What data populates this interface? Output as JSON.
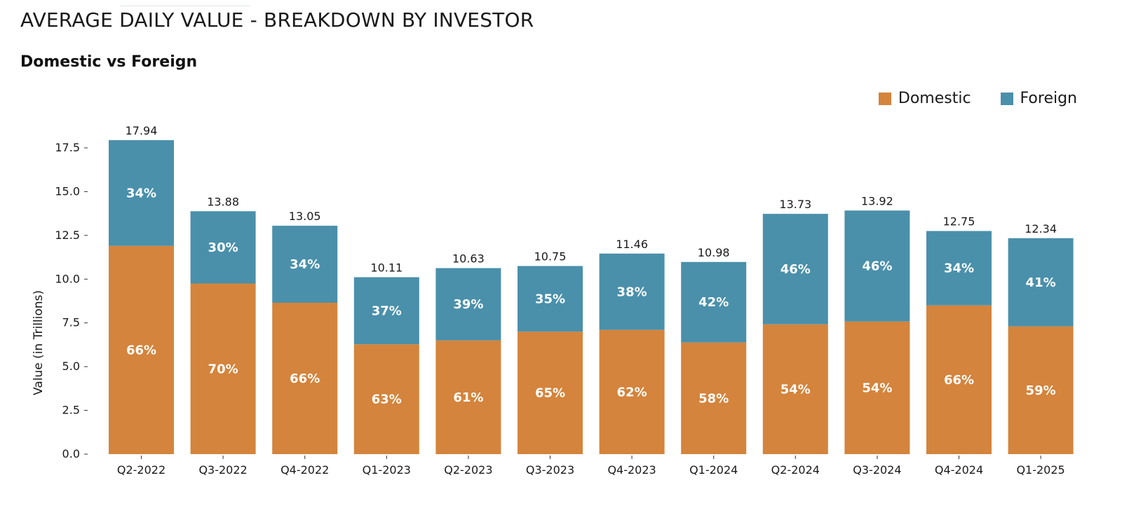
{
  "header": {
    "title": "AVERAGE DAILY VALUE - BREAKDOWN BY INVESTOR",
    "subtitle": "Domestic vs Foreign"
  },
  "legend": {
    "domestic_label": "Domestic",
    "foreign_label": "Foreign"
  },
  "colors": {
    "domestic": "#D4843C",
    "foreign": "#4A90AB"
  },
  "chart_data": {
    "type": "bar",
    "stacked": true,
    "categories": [
      "Q2-2022",
      "Q3-2022",
      "Q4-2022",
      "Q1-2023",
      "Q2-2023",
      "Q3-2023",
      "Q4-2023",
      "Q1-2024",
      "Q2-2024",
      "Q3-2024",
      "Q4-2024",
      "Q1-2025"
    ],
    "totals": [
      17.94,
      13.88,
      13.05,
      10.11,
      10.63,
      10.75,
      11.46,
      10.98,
      13.73,
      13.92,
      12.75,
      12.34
    ],
    "total_labels": [
      "17.94",
      "13.88",
      "13.05",
      "10.11",
      "10.63",
      "10.75",
      "11.46",
      "10.98",
      "13.73",
      "13.92",
      "12.75",
      "12.34"
    ],
    "series": [
      {
        "name": "Domestic",
        "values": [
          11.9,
          9.75,
          8.65,
          6.28,
          6.5,
          7.0,
          7.1,
          6.38,
          7.42,
          7.58,
          8.5,
          7.3
        ],
        "labels": [
          "66%",
          "70%",
          "66%",
          "63%",
          "61%",
          "65%",
          "62%",
          "58%",
          "54%",
          "54%",
          "66%",
          "59%"
        ]
      },
      {
        "name": "Foreign",
        "values": [
          6.04,
          4.13,
          4.4,
          3.83,
          4.13,
          3.75,
          4.36,
          4.6,
          6.31,
          6.34,
          4.25,
          5.04
        ],
        "labels": [
          "34%",
          "30%",
          "34%",
          "37%",
          "39%",
          "35%",
          "38%",
          "42%",
          "46%",
          "46%",
          "34%",
          "41%"
        ]
      }
    ],
    "ylabel": "Value (in Trillions)",
    "xlabel": "",
    "ylim": [
      0,
      17.94
    ],
    "yticks": [
      0,
      2.5,
      5,
      7.5,
      10,
      12.5,
      15,
      17.5
    ],
    "ytick_labels": [
      "0.0",
      "2.5",
      "5.0",
      "7.5",
      "10.0",
      "12.5",
      "15.0",
      "17.5"
    ],
    "grid": false,
    "legend_position": "top-right"
  }
}
